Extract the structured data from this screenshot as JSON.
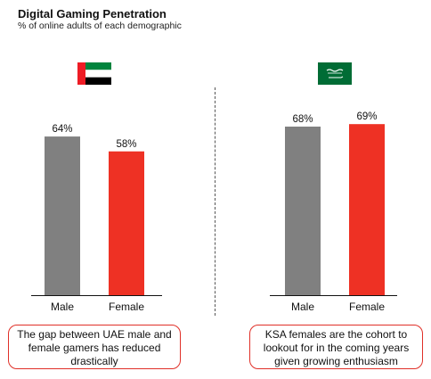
{
  "header": {
    "title": "Digital Gaming Penetration",
    "subtitle": "% of online adults of each demographic"
  },
  "chart_data": {
    "type": "bar",
    "title": "Digital Gaming Penetration",
    "subtitle": "% of online adults of each demographic",
    "ylim": [
      0,
      100
    ],
    "grid": false,
    "legend": "none",
    "groups": [
      {
        "country": "UAE",
        "flag_icon": "uae-flag-icon",
        "categories": [
          "Male",
          "Female"
        ],
        "values": [
          64,
          58
        ],
        "value_labels": [
          "64%",
          "58%"
        ],
        "colors": [
          "#808080",
          "#ee3124"
        ],
        "note": "The gap between UAE male and female gamers has reduced drastically"
      },
      {
        "country": "KSA",
        "flag_icon": "ksa-flag-icon",
        "categories": [
          "Male",
          "Female"
        ],
        "values": [
          68,
          69
        ],
        "value_labels": [
          "68%",
          "69%"
        ],
        "colors": [
          "#808080",
          "#ee3124"
        ],
        "note": "KSA females are the cohort to lookout for in the coming years given growing enthusiasm"
      }
    ]
  }
}
